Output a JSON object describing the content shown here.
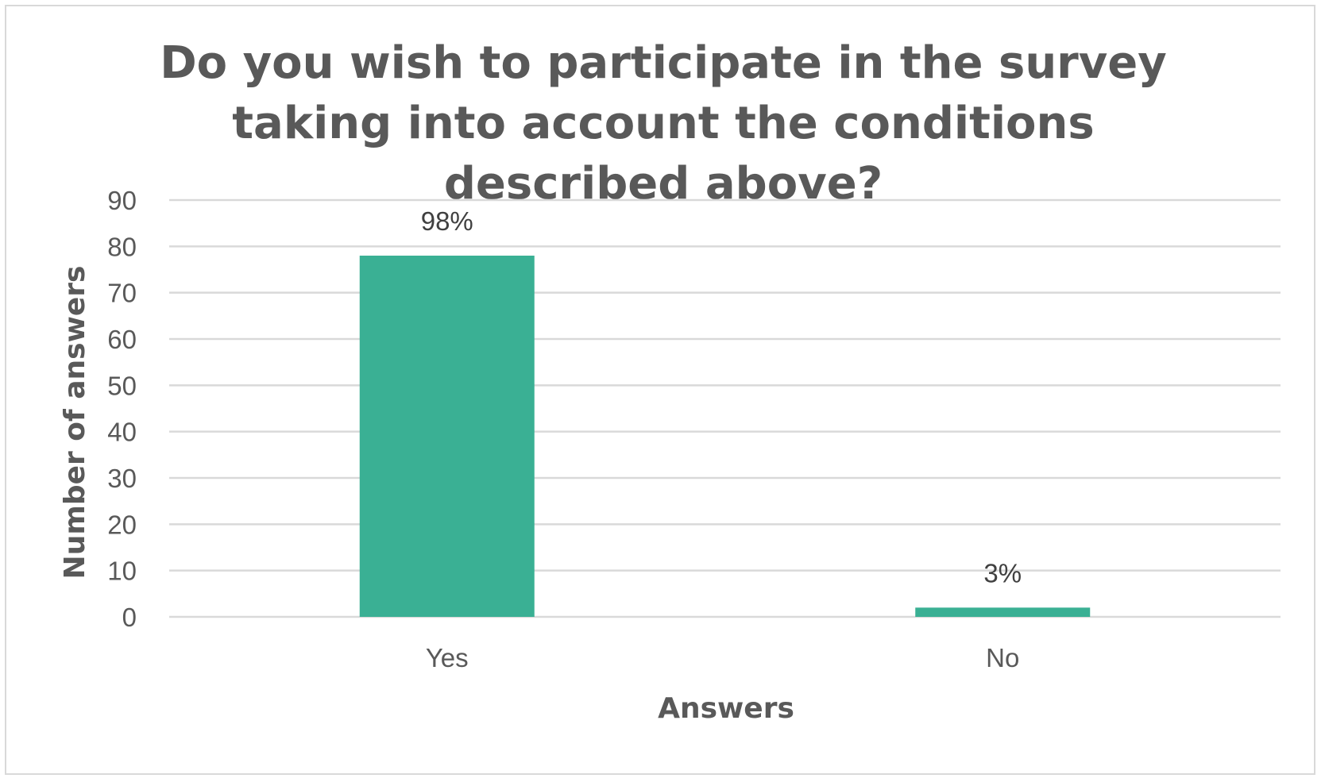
{
  "chart_data": {
    "type": "bar",
    "title": "Do you wish to participate in the survey taking into account the conditions described above?",
    "xlabel": "Answers",
    "ylabel": "Number of answers",
    "categories": [
      "Yes",
      "No"
    ],
    "values": [
      78,
      2
    ],
    "data_labels": [
      "98%",
      "3%"
    ],
    "ylim": [
      0,
      90
    ],
    "yticks": [
      0,
      10,
      20,
      30,
      40,
      50,
      60,
      70,
      80,
      90
    ],
    "grid": true,
    "legend": "none",
    "bar_color": "#3AB094",
    "gridline_color": "#d9d9d9",
    "text_color": "#595959"
  }
}
